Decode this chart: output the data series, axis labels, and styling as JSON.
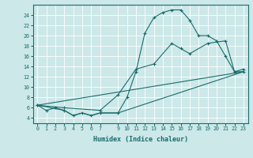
{
  "title": "",
  "xlabel": "Humidex (Indice chaleur)",
  "bg_color": "#cce8e8",
  "line_color": "#1a6b6b",
  "grid_color": "#ffffff",
  "xlim": [
    -0.5,
    23.5
  ],
  "ylim": [
    3.0,
    26.0
  ],
  "xticks": [
    0,
    1,
    2,
    3,
    4,
    5,
    6,
    7,
    9,
    10,
    11,
    12,
    13,
    14,
    15,
    16,
    17,
    18,
    19,
    20,
    21,
    22,
    23
  ],
  "yticks": [
    4,
    6,
    8,
    10,
    12,
    14,
    16,
    18,
    20,
    22,
    24
  ],
  "line1_x": [
    0,
    1,
    2,
    3,
    4,
    5,
    6,
    7,
    9,
    10,
    11,
    12,
    13,
    14,
    15,
    16,
    17,
    18,
    19,
    20,
    21,
    22,
    23
  ],
  "line1_y": [
    6.5,
    5.5,
    6.0,
    5.5,
    4.5,
    5.0,
    4.5,
    5.0,
    5.0,
    8.0,
    13.0,
    20.5,
    23.5,
    24.5,
    25.0,
    25.0,
    23.0,
    20.0,
    20.0,
    19.0,
    16.0,
    13.0,
    13.0
  ],
  "line2_x": [
    0,
    3,
    7,
    9,
    11,
    13,
    15,
    16,
    17,
    19,
    21,
    22,
    23
  ],
  "line2_y": [
    6.5,
    6.0,
    5.5,
    8.5,
    13.5,
    14.5,
    18.5,
    17.5,
    16.5,
    18.5,
    19.0,
    13.0,
    13.5
  ],
  "line3_x": [
    0,
    23
  ],
  "line3_y": [
    6.5,
    13.0
  ],
  "line4_x": [
    0,
    3,
    4,
    5,
    6,
    7,
    9,
    23
  ],
  "line4_y": [
    6.5,
    5.5,
    4.5,
    5.0,
    4.5,
    5.0,
    5.0,
    13.0
  ]
}
